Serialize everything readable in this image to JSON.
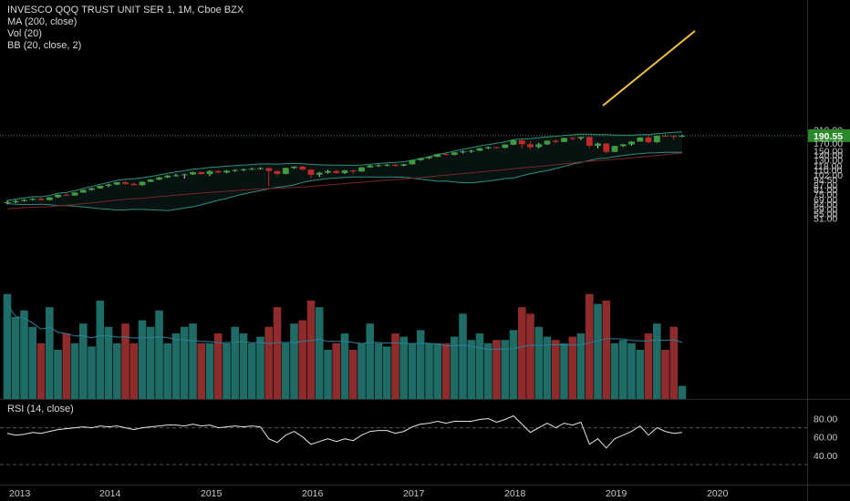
{
  "legend": {
    "title": "INVESCO QQQ TRUST UNIT SER 1, 1M, Cboe BZX",
    "ma": "MA (200, close)",
    "vol": "Vol (20)",
    "bb": "BB (20, close, 2)",
    "rsi": "RSI (14, close)"
  },
  "last_price_label": "190.55",
  "colors": {
    "background": "#000000",
    "up": "#3f9c3f",
    "down": "#c12a2a",
    "vol_up": "#1f6b66",
    "vol_down": "#8f2b2b",
    "bb_line": "#2b8f7e",
    "ma_line": "#7a2525",
    "vol_ma": "#2b7f9a",
    "trendline": "#f5c342",
    "rsi_line": "#e6e6e6",
    "badge": "#2a8a2a"
  },
  "chart_data": {
    "type": "candlestick",
    "period": "1M",
    "price_axis": {
      "scale": "log",
      "ticks": [
        210.0,
        190.55,
        170.0,
        150.0,
        140.0,
        130.0,
        118.0,
        110.0,
        102.0,
        94.5,
        87.0,
        81.0,
        75.0,
        69.0,
        64.0,
        59.0,
        55.0,
        51.0
      ]
    },
    "time_axis": {
      "ticks": [
        "2013",
        "2014",
        "2015",
        "2016",
        "2017",
        "2018",
        "2019",
        "2020"
      ]
    },
    "candles_ohlc": [
      [
        65.0,
        67.8,
        63.5,
        66.0
      ],
      [
        66.0,
        68.2,
        64.8,
        67.1
      ],
      [
        67.1,
        69.0,
        66.5,
        68.3
      ],
      [
        68.3,
        70.2,
        67.8,
        69.5
      ],
      [
        69.5,
        71.0,
        67.5,
        68.2
      ],
      [
        68.2,
        71.5,
        67.9,
        71.2
      ],
      [
        71.2,
        74.5,
        70.8,
        74.2
      ],
      [
        74.2,
        75.8,
        72.5,
        73.4
      ],
      [
        73.4,
        77.2,
        73.0,
        76.9
      ],
      [
        76.9,
        80.5,
        76.5,
        80.2
      ],
      [
        80.2,
        82.8,
        79.5,
        82.3
      ],
      [
        82.3,
        86.0,
        81.8,
        85.5
      ],
      [
        85.5,
        88.5,
        84.0,
        87.3
      ],
      [
        87.3,
        91.0,
        86.5,
        90.6
      ],
      [
        90.6,
        92.5,
        87.0,
        88.2
      ],
      [
        88.2,
        90.5,
        85.8,
        86.5
      ],
      [
        86.5,
        91.8,
        85.9,
        91.2
      ],
      [
        91.2,
        95.0,
        90.8,
        94.6
      ],
      [
        94.6,
        98.5,
        94.0,
        97.9
      ],
      [
        97.9,
        101.5,
        96.8,
        100.7
      ],
      [
        100.7,
        103.5,
        99.2,
        101.2
      ],
      [
        101.2,
        104.0,
        96.0,
        102.6
      ],
      [
        102.6,
        107.0,
        101.8,
        106.4
      ],
      [
        106.4,
        107.8,
        102.5,
        103.2
      ],
      [
        103.2,
        109.5,
        100.2,
        108.3
      ],
      [
        108.3,
        109.8,
        104.8,
        105.9
      ],
      [
        105.9,
        110.0,
        104.5,
        109.0
      ],
      [
        109.0,
        111.5,
        107.0,
        110.2
      ],
      [
        110.2,
        112.5,
        108.5,
        111.5
      ],
      [
        111.5,
        114.0,
        110.5,
        112.3
      ],
      [
        112.3,
        114.8,
        111.0,
        113.4
      ],
      [
        113.4,
        115.0,
        85.2,
        108.4
      ],
      [
        108.4,
        110.0,
        100.5,
        103.6
      ],
      [
        103.6,
        114.5,
        103.0,
        113.8
      ],
      [
        113.8,
        117.0,
        112.5,
        116.4
      ],
      [
        116.4,
        118.0,
        109.5,
        110.9
      ],
      [
        110.9,
        111.5,
        96.5,
        102.3
      ],
      [
        102.3,
        107.0,
        98.5,
        105.6
      ],
      [
        105.6,
        110.5,
        104.0,
        108.4
      ],
      [
        108.4,
        110.2,
        103.8,
        105.1
      ],
      [
        105.1,
        110.0,
        103.5,
        109.4
      ],
      [
        109.4,
        110.8,
        104.0,
        107.5
      ],
      [
        107.5,
        115.5,
        107.2,
        114.8
      ],
      [
        114.8,
        119.5,
        114.2,
        118.2
      ],
      [
        118.2,
        120.5,
        116.0,
        118.9
      ],
      [
        118.9,
        121.2,
        116.8,
        120.0
      ],
      [
        120.0,
        122.0,
        116.5,
        117.8
      ],
      [
        117.8,
        121.5,
        117.0,
        120.6
      ],
      [
        120.6,
        129.0,
        120.3,
        128.9
      ],
      [
        128.9,
        133.5,
        128.0,
        132.9
      ],
      [
        132.9,
        137.0,
        131.5,
        136.0
      ],
      [
        136.0,
        143.0,
        135.5,
        142.4
      ],
      [
        142.4,
        144.5,
        138.5,
        140.4
      ],
      [
        140.4,
        146.5,
        139.0,
        145.9
      ],
      [
        145.9,
        150.0,
        143.5,
        148.3
      ],
      [
        148.3,
        152.0,
        145.0,
        149.9
      ],
      [
        149.9,
        157.0,
        149.5,
        155.8
      ],
      [
        155.8,
        160.5,
        154.0,
        158.5
      ],
      [
        158.5,
        160.0,
        155.5,
        156.9
      ],
      [
        156.9,
        166.0,
        156.0,
        165.3
      ],
      [
        165.3,
        178.0,
        164.0,
        176.9
      ],
      [
        176.9,
        178.5,
        155.0,
        166.2
      ],
      [
        166.2,
        174.0,
        153.5,
        158.9
      ],
      [
        158.9,
        170.0,
        156.0,
        166.2
      ],
      [
        166.2,
        176.5,
        164.5,
        175.8
      ],
      [
        175.8,
        180.0,
        168.5,
        172.5
      ],
      [
        172.5,
        184.5,
        172.0,
        183.9
      ],
      [
        183.9,
        187.0,
        176.5,
        182.5
      ],
      [
        182.5,
        187.0,
        178.0,
        186.5
      ],
      [
        186.5,
        187.2,
        156.0,
        162.2
      ],
      [
        162.2,
        170.0,
        155.5,
        168.1
      ],
      [
        168.1,
        169.5,
        143.5,
        147.2
      ],
      [
        147.2,
        162.0,
        146.5,
        161.5
      ],
      [
        161.5,
        167.0,
        159.5,
        165.8
      ],
      [
        165.8,
        174.0,
        163.0,
        173.5
      ],
      [
        173.5,
        186.0,
        173.0,
        185.0
      ],
      [
        185.0,
        191.5,
        168.0,
        171.7
      ],
      [
        171.7,
        190.5,
        170.5,
        190.0
      ],
      [
        190.0,
        196.0,
        187.5,
        189.7
      ],
      [
        189.7,
        193.0,
        178.5,
        188.3
      ],
      [
        188.3,
        193.5,
        186.0,
        190.5
      ]
    ],
    "volume": [
      62,
      55,
      57,
      52,
      47,
      58,
      45,
      50,
      47,
      53,
      46,
      60,
      52,
      47,
      53,
      47,
      54,
      52,
      57,
      47,
      50,
      52,
      53,
      47,
      47,
      50,
      47,
      52,
      50,
      47,
      49,
      52,
      58,
      47,
      53,
      54,
      60,
      58,
      45,
      47,
      50,
      45,
      47,
      53,
      47,
      46,
      50,
      49,
      47,
      51,
      47,
      47,
      47,
      49,
      56,
      48,
      50,
      47,
      48,
      48,
      51,
      58,
      56,
      52,
      49,
      48,
      47,
      49,
      50,
      62,
      59,
      60,
      47,
      48,
      47,
      45,
      50,
      53,
      45,
      52,
      34
    ],
    "rsi": [
      64,
      62,
      63,
      65,
      64,
      66,
      68,
      69,
      70,
      71,
      70,
      72,
      71,
      72,
      70,
      68,
      70,
      71,
      72,
      73,
      73,
      72,
      74,
      72,
      73,
      70,
      71,
      72,
      71,
      72,
      71,
      58,
      54,
      62,
      66,
      60,
      52,
      55,
      58,
      55,
      58,
      56,
      62,
      66,
      67,
      67,
      64,
      66,
      71,
      74,
      75,
      77,
      75,
      77,
      77,
      77,
      79,
      80,
      76,
      79,
      83,
      74,
      65,
      70,
      75,
      70,
      75,
      73,
      76,
      52,
      58,
      48,
      58,
      62,
      66,
      72,
      62,
      70,
      66,
      64,
      65
    ]
  }
}
